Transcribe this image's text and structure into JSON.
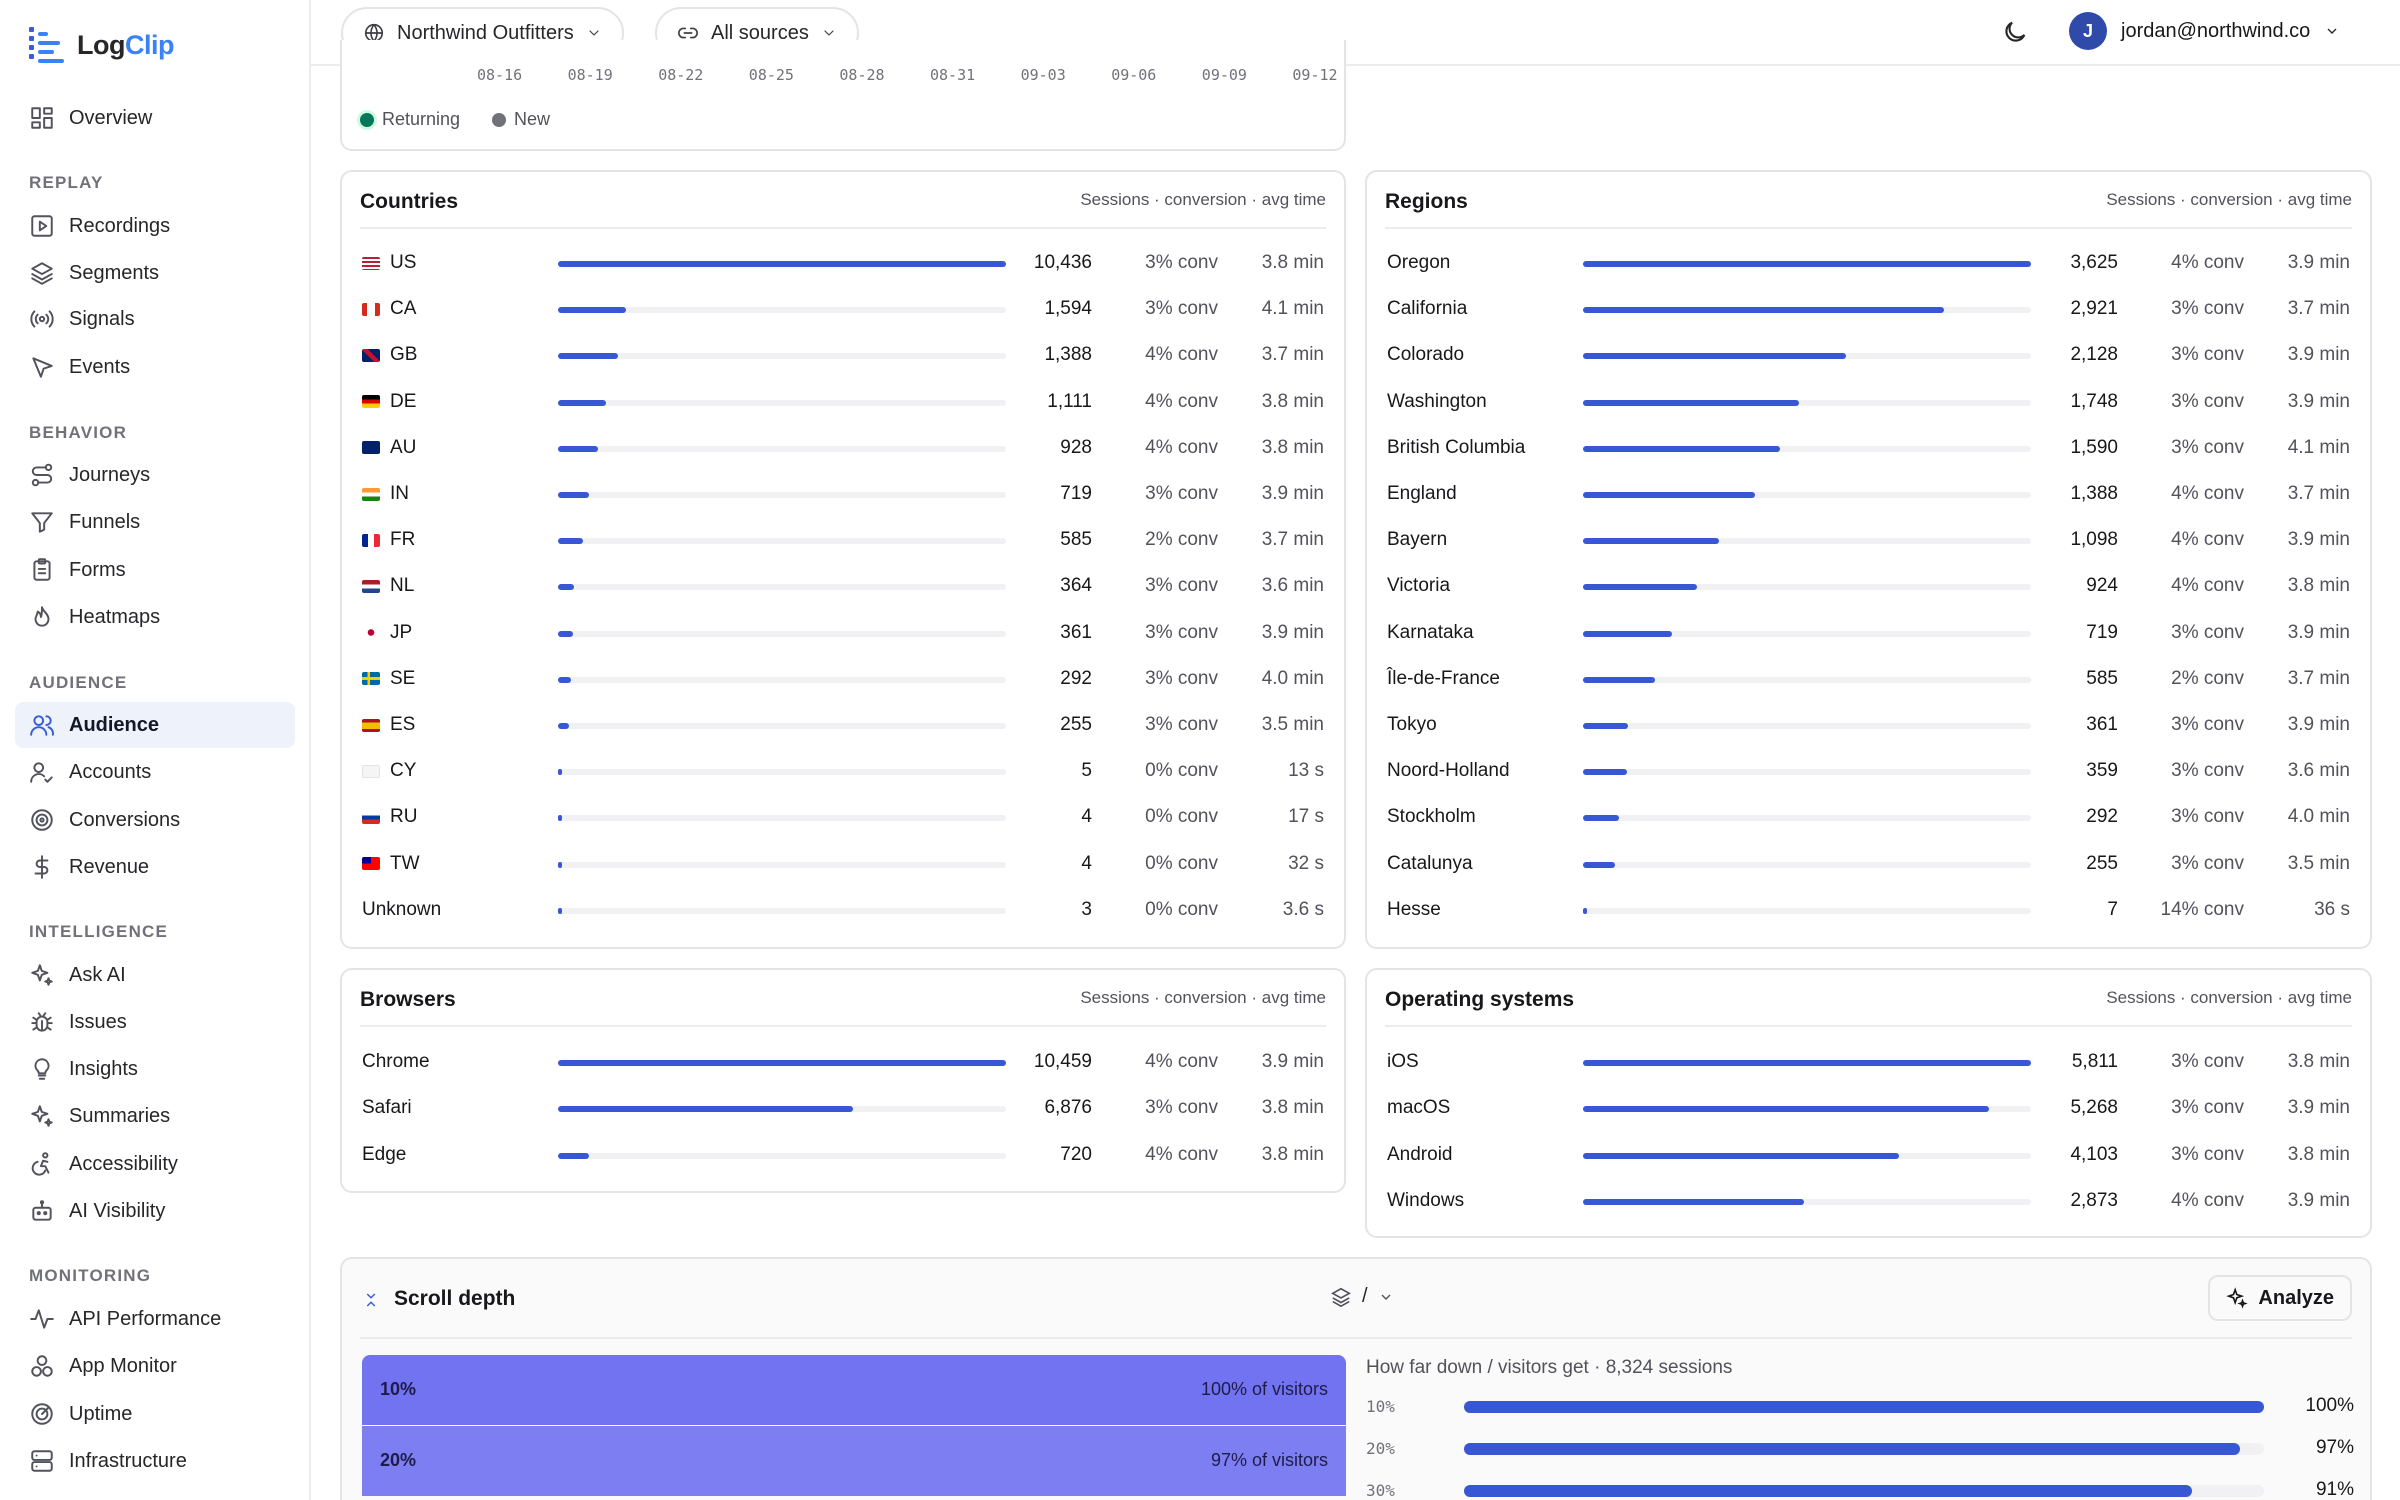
{
  "brand": {
    "part1": "Log",
    "part2": "Clip"
  },
  "nav": {
    "overview": "Overview",
    "replay_heading": "REPLAY",
    "recordings": "Recordings",
    "segments": "Segments",
    "signals": "Signals",
    "events": "Events",
    "behavior_heading": "BEHAVIOR",
    "journeys": "Journeys",
    "funnels": "Funnels",
    "forms": "Forms",
    "heatmaps": "Heatmaps",
    "audience_heading": "AUDIENCE",
    "audience": "Audience",
    "accounts": "Accounts",
    "conversions": "Conversions",
    "revenue": "Revenue",
    "intelligence_heading": "INTELLIGENCE",
    "ask_ai": "Ask AI",
    "issues": "Issues",
    "insights": "Insights",
    "summaries": "Summaries",
    "accessibility": "Accessibility",
    "ai_visibility": "AI Visibility",
    "monitoring_heading": "MONITORING",
    "api_performance": "API Performance",
    "app_monitor": "App Monitor",
    "uptime": "Uptime",
    "infrastructure": "Infrastructure"
  },
  "header": {
    "site": "Northwind Outfitters",
    "source": "All sources",
    "user_initial": "J",
    "user_email": "jordan@northwind.co"
  },
  "trend": {
    "ticks": [
      "08-16",
      "08-19",
      "08-22",
      "08-25",
      "08-28",
      "08-31",
      "09-03",
      "09-06",
      "09-09",
      "09-12"
    ],
    "legend": [
      {
        "name": "Returning",
        "color": "#047857"
      },
      {
        "name": "New",
        "color": "#71717a"
      }
    ]
  },
  "countries": {
    "title": "Countries",
    "subtitle": "Sessions · conversion · avg time",
    "rows": [
      {
        "label": "US",
        "flag": "us",
        "sessions": "10,436",
        "value": 10436,
        "conv": "3% conv",
        "time": "3.8 min"
      },
      {
        "label": "CA",
        "flag": "ca",
        "sessions": "1,594",
        "value": 1594,
        "conv": "3% conv",
        "time": "4.1 min"
      },
      {
        "label": "GB",
        "flag": "gb",
        "sessions": "1,388",
        "value": 1388,
        "conv": "4% conv",
        "time": "3.7 min"
      },
      {
        "label": "DE",
        "flag": "de",
        "sessions": "1,111",
        "value": 1111,
        "conv": "4% conv",
        "time": "3.8 min"
      },
      {
        "label": "AU",
        "flag": "au",
        "sessions": "928",
        "value": 928,
        "conv": "4% conv",
        "time": "3.8 min"
      },
      {
        "label": "IN",
        "flag": "in",
        "sessions": "719",
        "value": 719,
        "conv": "3% conv",
        "time": "3.9 min"
      },
      {
        "label": "FR",
        "flag": "fr",
        "sessions": "585",
        "value": 585,
        "conv": "2% conv",
        "time": "3.7 min"
      },
      {
        "label": "NL",
        "flag": "nl",
        "sessions": "364",
        "value": 364,
        "conv": "3% conv",
        "time": "3.6 min"
      },
      {
        "label": "JP",
        "flag": "jp",
        "sessions": "361",
        "value": 361,
        "conv": "3% conv",
        "time": "3.9 min"
      },
      {
        "label": "SE",
        "flag": "se",
        "sessions": "292",
        "value": 292,
        "conv": "3% conv",
        "time": "4.0 min"
      },
      {
        "label": "ES",
        "flag": "es",
        "sessions": "255",
        "value": 255,
        "conv": "3% conv",
        "time": "3.5 min"
      },
      {
        "label": "CY",
        "flag": "cy",
        "sessions": "5",
        "value": 5,
        "conv": "0% conv",
        "time": "13 s"
      },
      {
        "label": "RU",
        "flag": "ru",
        "sessions": "4",
        "value": 4,
        "conv": "0% conv",
        "time": "17 s"
      },
      {
        "label": "TW",
        "flag": "tw",
        "sessions": "4",
        "value": 4,
        "conv": "0% conv",
        "time": "32 s"
      },
      {
        "label": "Unknown",
        "flag": "",
        "sessions": "3",
        "value": 3,
        "conv": "0% conv",
        "time": "3.6 s"
      }
    ]
  },
  "regions": {
    "title": "Regions",
    "subtitle": "Sessions · conversion · avg time",
    "rows": [
      {
        "label": "Oregon",
        "sessions": "3,625",
        "value": 3625,
        "conv": "4% conv",
        "time": "3.9 min"
      },
      {
        "label": "California",
        "sessions": "2,921",
        "value": 2921,
        "conv": "3% conv",
        "time": "3.7 min"
      },
      {
        "label": "Colorado",
        "sessions": "2,128",
        "value": 2128,
        "conv": "3% conv",
        "time": "3.9 min"
      },
      {
        "label": "Washington",
        "sessions": "1,748",
        "value": 1748,
        "conv": "3% conv",
        "time": "3.9 min"
      },
      {
        "label": "British Columbia",
        "sessions": "1,590",
        "value": 1590,
        "conv": "3% conv",
        "time": "4.1 min"
      },
      {
        "label": "England",
        "sessions": "1,388",
        "value": 1388,
        "conv": "4% conv",
        "time": "3.7 min"
      },
      {
        "label": "Bayern",
        "sessions": "1,098",
        "value": 1098,
        "conv": "4% conv",
        "time": "3.9 min"
      },
      {
        "label": "Victoria",
        "sessions": "924",
        "value": 924,
        "conv": "4% conv",
        "time": "3.8 min"
      },
      {
        "label": "Karnataka",
        "sessions": "719",
        "value": 719,
        "conv": "3% conv",
        "time": "3.9 min"
      },
      {
        "label": "Île-de-France",
        "sessions": "585",
        "value": 585,
        "conv": "2% conv",
        "time": "3.7 min"
      },
      {
        "label": "Tokyo",
        "sessions": "361",
        "value": 361,
        "conv": "3% conv",
        "time": "3.9 min"
      },
      {
        "label": "Noord-Holland",
        "sessions": "359",
        "value": 359,
        "conv": "3% conv",
        "time": "3.6 min"
      },
      {
        "label": "Stockholm",
        "sessions": "292",
        "value": 292,
        "conv": "3% conv",
        "time": "4.0 min"
      },
      {
        "label": "Catalunya",
        "sessions": "255",
        "value": 255,
        "conv": "3% conv",
        "time": "3.5 min"
      },
      {
        "label": "Hesse",
        "sessions": "7",
        "value": 7,
        "conv": "14% conv",
        "time": "36 s"
      }
    ]
  },
  "browsers": {
    "title": "Browsers",
    "subtitle": "Sessions · conversion · avg time",
    "rows": [
      {
        "label": "Chrome",
        "sessions": "10,459",
        "value": 10459,
        "conv": "4% conv",
        "time": "3.9 min"
      },
      {
        "label": "Safari",
        "sessions": "6,876",
        "value": 6876,
        "conv": "3% conv",
        "time": "3.8 min"
      },
      {
        "label": "Edge",
        "sessions": "720",
        "value": 720,
        "conv": "4% conv",
        "time": "3.8 min"
      }
    ]
  },
  "os": {
    "title": "Operating systems",
    "subtitle": "Sessions · conversion · avg time",
    "rows": [
      {
        "label": "iOS",
        "sessions": "5,811",
        "value": 5811,
        "conv": "3% conv",
        "time": "3.8 min"
      },
      {
        "label": "macOS",
        "sessions": "5,268",
        "value": 5268,
        "conv": "3% conv",
        "time": "3.9 min"
      },
      {
        "label": "Android",
        "sessions": "4,103",
        "value": 4103,
        "conv": "3% conv",
        "time": "3.8 min"
      },
      {
        "label": "Windows",
        "sessions": "2,873",
        "value": 2873,
        "conv": "4% conv",
        "time": "3.9 min"
      }
    ]
  },
  "scroll": {
    "title": "Scroll depth",
    "page_selector": "/",
    "analyze": "Analyze",
    "summary": "How far down / visitors get · 8,324 sessions",
    "bands": [
      {
        "depth": "10%",
        "text": "100% of visitors",
        "color": "#7273f0"
      },
      {
        "depth": "20%",
        "text": "97% of visitors",
        "color": "#7c7ef2"
      }
    ],
    "bars": [
      {
        "depth": "10%",
        "pct": "100%",
        "value": 100
      },
      {
        "depth": "20%",
        "pct": "97%",
        "value": 97
      },
      {
        "depth": "30%",
        "pct": "91%",
        "value": 91
      }
    ]
  }
}
